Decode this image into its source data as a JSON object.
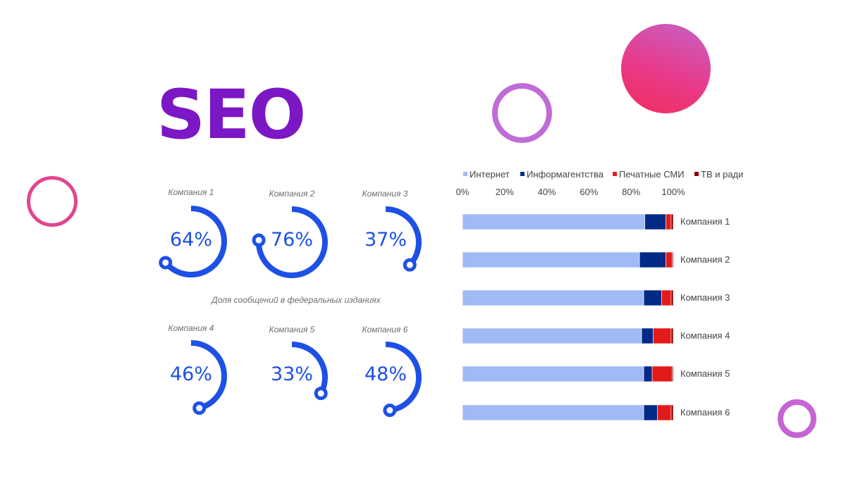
{
  "title": "SEO",
  "gauges": {
    "caption": "Доля сообщений в федеральных изданиях",
    "color": "#1e50e6",
    "items": [
      {
        "label": "Компания 1",
        "value_text": "64%",
        "value": 64
      },
      {
        "label": "Компания 2",
        "value_text": "76%",
        "value": 76
      },
      {
        "label": "Компания 3",
        "value_text": "37%",
        "value": 37
      },
      {
        "label": "Компания 4",
        "value_text": "46%",
        "value": 46
      },
      {
        "label": "Компания 5",
        "value_text": "33%",
        "value": 33
      },
      {
        "label": "Компания 6",
        "value_text": "48%",
        "value": 48
      }
    ]
  },
  "chart_data": {
    "type": "bar",
    "orientation": "horizontal",
    "stacked": "percent",
    "categories": [
      "Компания 1",
      "Компания 2",
      "Компания 3",
      "Компания 4",
      "Компания 5",
      "Компания 6"
    ],
    "series": [
      {
        "name": "Интернет",
        "color": "#9fbaf5",
        "values": [
          86.5,
          84,
          86,
          85,
          86,
          86
        ]
      },
      {
        "name": "Информагентства",
        "color": "#002a86",
        "values": [
          10,
          12.5,
          8.5,
          5.5,
          4,
          6.5
        ]
      },
      {
        "name": "Печатные СМИ",
        "color": "#e31a1a",
        "values": [
          2.5,
          3,
          4.5,
          8.5,
          9.5,
          6.5
        ]
      },
      {
        "name": "ТВ и ради",
        "color": "#8b0000",
        "values": [
          1,
          0.5,
          1,
          1,
          0.5,
          1
        ]
      }
    ],
    "x_ticks": [
      "0%",
      "20%",
      "40%",
      "60%",
      "80%",
      "100%"
    ],
    "xlim": [
      0,
      100
    ],
    "legend_position": "top",
    "grid": false
  }
}
